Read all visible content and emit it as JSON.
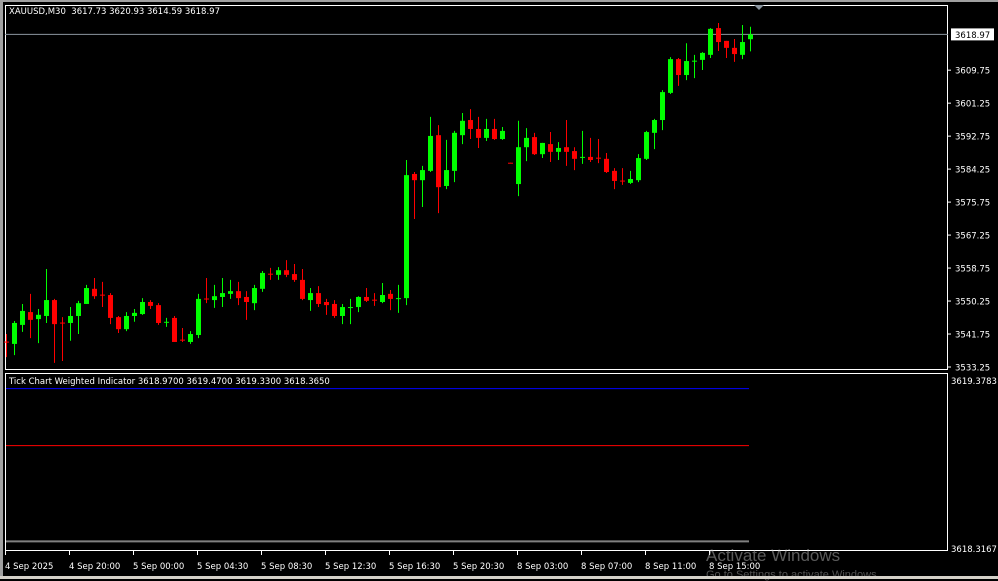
{
  "header": {
    "symbol": "XAUUSD,M30",
    "ohlc": "3617.73 3620.93 3614.59 3618.97"
  },
  "indicator": {
    "label": "Tick Chart Weighted Indicator 3618.9700 3619.4700 3619.3300 3618.3650",
    "axis_top": "3619.3783",
    "axis_bottom": "3618.3167",
    "lines": [
      {
        "value": 3619.33,
        "color": "#0000ff"
      },
      {
        "value": 3618.97,
        "color": "#ff0000"
      },
      {
        "value": 3618.365,
        "color": "#808080"
      }
    ]
  },
  "watermark": {
    "line1": "Activate Windows",
    "line2": "Go to Settings to activate Windows."
  },
  "chart_data": {
    "type": "candlestick",
    "symbol": "XAUUSD",
    "timeframe": "M30",
    "current_price": "3618.97",
    "colors": {
      "up": "#00ff00",
      "down": "#ff0000",
      "background": "#000000",
      "axis": "#ffffff",
      "price_line": "#8c96a0"
    },
    "ylim": [
      3533.25,
      3618.97
    ],
    "y_ticks": [
      "3609.75",
      "3601.25",
      "3592.75",
      "3584.25",
      "3575.75",
      "3567.25",
      "3558.75",
      "3550.25",
      "3541.75",
      "3533.25"
    ],
    "x_ticks": [
      "4 Sep 2025",
      "4 Sep 20:00",
      "5 Sep 00:00",
      "5 Sep 04:30",
      "5 Sep 08:30",
      "5 Sep 12:30",
      "5 Sep 16:30",
      "5 Sep 20:30",
      "8 Sep 03:00",
      "8 Sep 07:00",
      "8 Sep 11:00",
      "8 Sep 15:00"
    ],
    "grid": false,
    "ohlc": [
      [
        3539.8,
        3541.75,
        3535.8,
        3539.7
      ],
      [
        3539.2,
        3545.1,
        3536.3,
        3544.6
      ],
      [
        3544.1,
        3549.5,
        3542.3,
        3547.7
      ],
      [
        3547.4,
        3552.1,
        3540.7,
        3545.4
      ],
      [
        3545.6,
        3548.2,
        3539.4,
        3546.7
      ],
      [
        3546.4,
        3558.5,
        3544.6,
        3550.5
      ],
      [
        3550.5,
        3550.8,
        3534.3,
        3544.3
      ],
      [
        3544.7,
        3546.1,
        3534.8,
        3544.6
      ],
      [
        3544.6,
        3548.7,
        3540.0,
        3546.4
      ],
      [
        3546.4,
        3550.3,
        3541.75,
        3549.7
      ],
      [
        3549.5,
        3554.4,
        3549.5,
        3553.6
      ],
      [
        3553.4,
        3556.2,
        3550.8,
        3551.5
      ],
      [
        3551.9,
        3555.2,
        3548.7,
        3551.8
      ],
      [
        3551.8,
        3552.3,
        3544.3,
        3545.9
      ],
      [
        3546.1,
        3546.4,
        3542.0,
        3543.0
      ],
      [
        3543.0,
        3547.4,
        3542.5,
        3546.4
      ],
      [
        3546.4,
        3548.2,
        3544.9,
        3547.2
      ],
      [
        3546.9,
        3551.0,
        3546.7,
        3550.0
      ],
      [
        3550.0,
        3550.5,
        3548.2,
        3549.0
      ],
      [
        3549.2,
        3549.7,
        3544.1,
        3544.6
      ],
      [
        3544.8,
        3545.9,
        3543.6,
        3544.9
      ],
      [
        3545.9,
        3546.4,
        3539.7,
        3539.7
      ],
      [
        3540.3,
        3543.3,
        3539.7,
        3540.2
      ],
      [
        3539.7,
        3542.5,
        3539.2,
        3541.75
      ],
      [
        3541.5,
        3552.1,
        3540.7,
        3550.8
      ],
      [
        3550.9,
        3556.2,
        3549.7,
        3550.8
      ],
      [
        3550.5,
        3554.4,
        3548.5,
        3551.5
      ],
      [
        3551.3,
        3556.2,
        3548.7,
        3552.3
      ],
      [
        3552.1,
        3555.7,
        3550.8,
        3552.8
      ],
      [
        3552.8,
        3555.2,
        3549.2,
        3551.0
      ],
      [
        3551.3,
        3552.8,
        3545.4,
        3550.0
      ],
      [
        3549.7,
        3554.4,
        3547.9,
        3553.6
      ],
      [
        3553.4,
        3558.0,
        3552.6,
        3557.5
      ],
      [
        3557.3,
        3558.8,
        3555.7,
        3557.2
      ],
      [
        3557.0,
        3559.0,
        3555.7,
        3558.2
      ],
      [
        3558.2,
        3560.8,
        3556.4,
        3557.0
      ],
      [
        3557.2,
        3559.8,
        3555.2,
        3555.7
      ],
      [
        3555.7,
        3558.5,
        3550.5,
        3550.8
      ],
      [
        3550.5,
        3553.6,
        3547.7,
        3552.3
      ],
      [
        3552.3,
        3554.1,
        3548.7,
        3549.5
      ],
      [
        3550.0,
        3550.8,
        3546.7,
        3549.2
      ],
      [
        3549.5,
        3550.5,
        3545.9,
        3546.4
      ],
      [
        3546.4,
        3549.5,
        3544.3,
        3548.7
      ],
      [
        3548.6,
        3550.8,
        3544.3,
        3548.7
      ],
      [
        3548.7,
        3551.5,
        3547.4,
        3551.3
      ],
      [
        3551.3,
        3553.6,
        3550.0,
        3550.3
      ],
      [
        3550.6,
        3552.3,
        3549.0,
        3550.5
      ],
      [
        3550.0,
        3554.9,
        3549.7,
        3551.8
      ],
      [
        3552.1,
        3553.1,
        3547.9,
        3550.8
      ],
      [
        3550.9,
        3554.4,
        3547.2,
        3551.0
      ],
      [
        3551.0,
        3586.6,
        3549.2,
        3582.7
      ],
      [
        3583.0,
        3583.5,
        3571.4,
        3581.4
      ],
      [
        3581.4,
        3585.1,
        3574.5,
        3584.0
      ],
      [
        3583.8,
        3597.7,
        3583.5,
        3592.8
      ],
      [
        3593.0,
        3595.6,
        3572.9,
        3579.6
      ],
      [
        3579.9,
        3591.8,
        3579.1,
        3584.0
      ],
      [
        3583.8,
        3594.1,
        3580.9,
        3593.6
      ],
      [
        3593.0,
        3598.7,
        3590.7,
        3596.7
      ],
      [
        3596.9,
        3599.7,
        3592.0,
        3594.6
      ],
      [
        3594.6,
        3597.7,
        3589.7,
        3592.3
      ],
      [
        3592.3,
        3597.2,
        3591.5,
        3594.6
      ],
      [
        3594.6,
        3597.2,
        3591.8,
        3592.0
      ],
      [
        3592.0,
        3595.1,
        3591.8,
        3594.1
      ],
      [
        3585.9,
        3585.9,
        3585.7,
        3585.8
      ],
      [
        3580.4,
        3596.7,
        3577.3,
        3589.9
      ],
      [
        3589.9,
        3594.8,
        3586.3,
        3592.3
      ],
      [
        3592.5,
        3593.6,
        3587.9,
        3588.1
      ],
      [
        3588.1,
        3591.0,
        3587.1,
        3591.0
      ],
      [
        3590.7,
        3593.8,
        3586.1,
        3588.7
      ],
      [
        3588.7,
        3591.2,
        3586.6,
        3589.7
      ],
      [
        3589.9,
        3596.9,
        3585.1,
        3588.7
      ],
      [
        3588.9,
        3589.9,
        3584.0,
        3586.9
      ],
      [
        3587.3,
        3594.1,
        3585.6,
        3587.4
      ],
      [
        3587.4,
        3592.3,
        3586.1,
        3586.6
      ],
      [
        3587.2,
        3592.0,
        3585.8,
        3587.1
      ],
      [
        3586.9,
        3588.4,
        3583.25,
        3583.5
      ],
      [
        3583.8,
        3584.5,
        3579.1,
        3581.2
      ],
      [
        3581.3,
        3584.5,
        3580.2,
        3581.2
      ],
      [
        3580.7,
        3583.8,
        3580.4,
        3581.7
      ],
      [
        3581.4,
        3588.1,
        3580.9,
        3587.1
      ],
      [
        3586.9,
        3594.1,
        3586.6,
        3593.8
      ],
      [
        3593.6,
        3597.2,
        3589.4,
        3596.9
      ],
      [
        3596.9,
        3604.6,
        3594.3,
        3604.1
      ],
      [
        3603.9,
        3613.1,
        3603.6,
        3612.6
      ],
      [
        3612.6,
        3612.9,
        3605.7,
        3608.5
      ],
      [
        3608.5,
        3616.7,
        3607.2,
        3612.1
      ],
      [
        3612.1,
        3613.7,
        3607.7,
        3612.2
      ],
      [
        3612.4,
        3614.4,
        3609.8,
        3614.2
      ],
      [
        3613.7,
        3620.6,
        3612.9,
        3620.4
      ],
      [
        3620.6,
        3621.9,
        3614.7,
        3617.0
      ],
      [
        3617.3,
        3617.3,
        3612.9,
        3615.5
      ],
      [
        3615.5,
        3617.8,
        3611.9,
        3613.9
      ],
      [
        3613.7,
        3621.4,
        3612.6,
        3617.0
      ],
      [
        3617.73,
        3620.93,
        3614.59,
        3618.97
      ]
    ]
  }
}
